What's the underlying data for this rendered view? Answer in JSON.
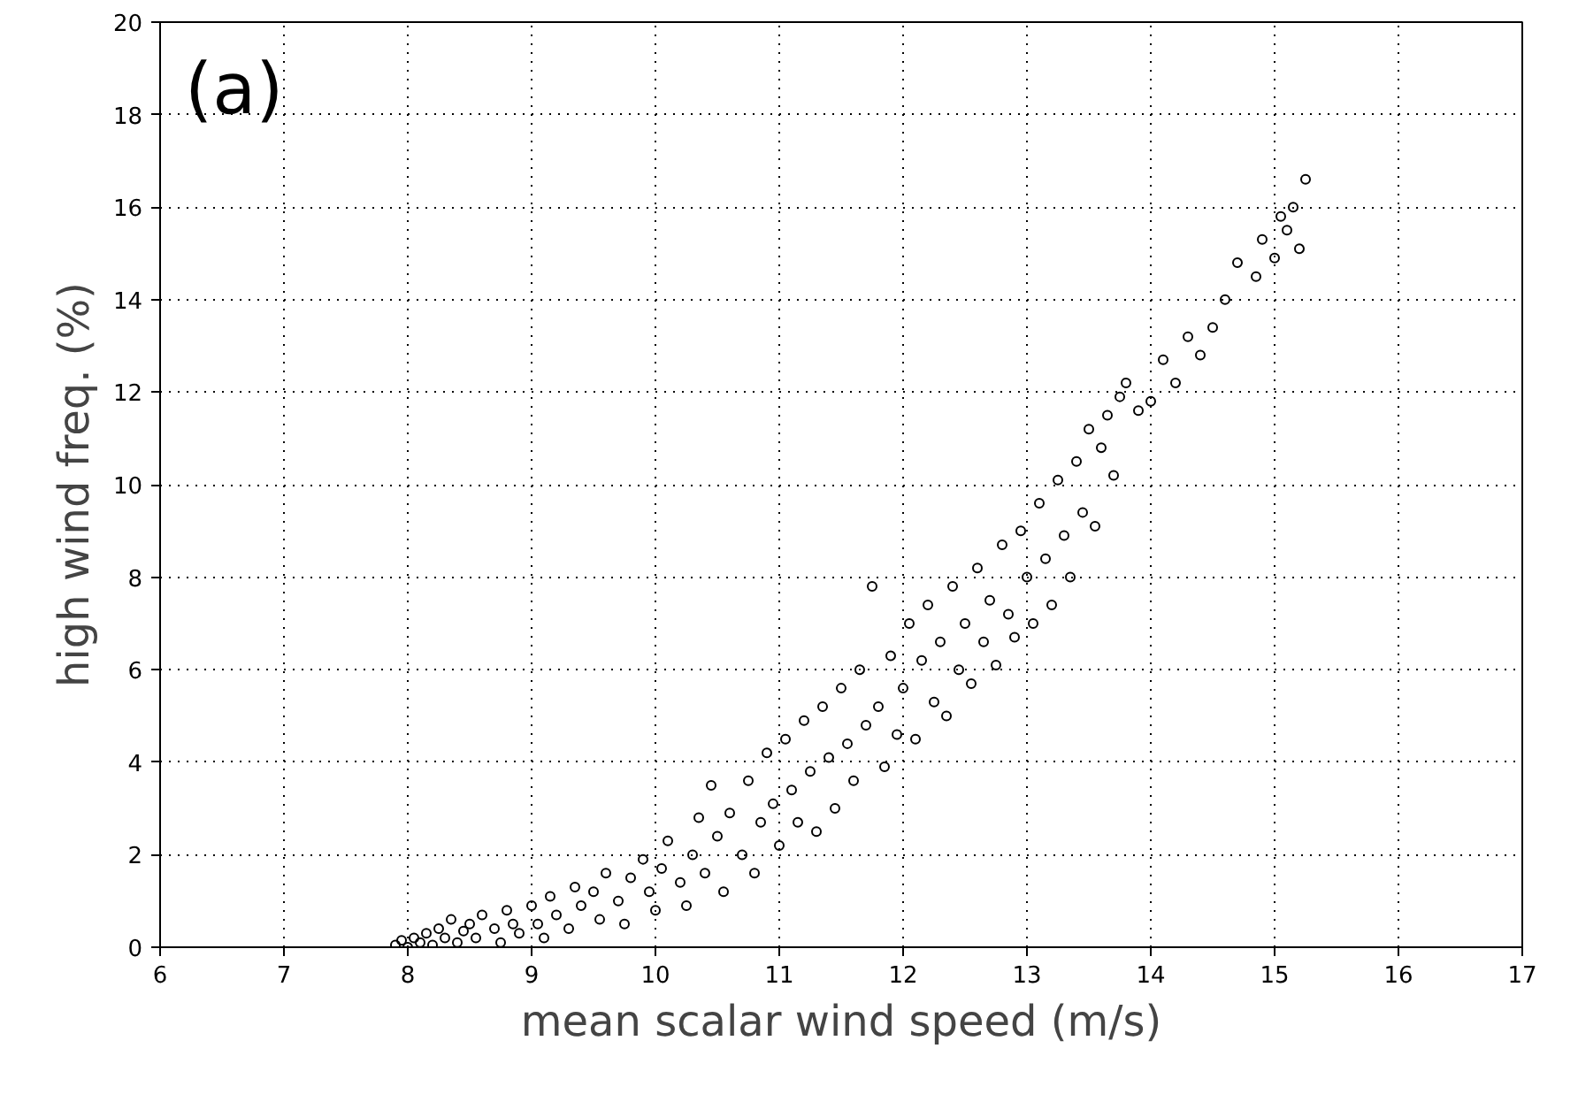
{
  "chart_data": {
    "type": "scatter",
    "xlabel": "mean scalar wind speed (m/s)",
    "ylabel": "high wind freq. (%)",
    "annotations": [
      "(a)"
    ],
    "xlim": [
      6,
      17
    ],
    "ylim": [
      0,
      20
    ],
    "xticks": [
      6,
      7,
      8,
      9,
      10,
      11,
      12,
      13,
      14,
      15,
      16,
      17
    ],
    "yticks": [
      0,
      2,
      4,
      6,
      8,
      10,
      12,
      14,
      16,
      18,
      20
    ],
    "grid": true,
    "marker": "circle",
    "x": [
      7.9,
      7.95,
      8.0,
      8.05,
      8.1,
      8.15,
      8.2,
      8.25,
      8.3,
      8.35,
      8.4,
      8.45,
      8.5,
      8.55,
      8.6,
      8.7,
      8.75,
      8.8,
      8.85,
      8.9,
      9.0,
      9.05,
      9.1,
      9.15,
      9.2,
      9.3,
      9.35,
      9.4,
      9.5,
      9.55,
      9.6,
      9.7,
      9.75,
      9.8,
      9.9,
      9.95,
      10.0,
      10.05,
      10.1,
      10.2,
      10.25,
      10.3,
      10.35,
      10.4,
      10.45,
      10.5,
      10.55,
      10.6,
      10.7,
      10.75,
      10.8,
      10.85,
      10.9,
      10.95,
      11.0,
      11.05,
      11.1,
      11.15,
      11.2,
      11.25,
      11.3,
      11.35,
      11.4,
      11.45,
      11.5,
      11.55,
      11.6,
      11.65,
      11.7,
      11.75,
      11.8,
      11.85,
      11.9,
      11.95,
      12.0,
      12.05,
      12.1,
      12.15,
      12.2,
      12.25,
      12.3,
      12.35,
      12.4,
      12.45,
      12.5,
      12.55,
      12.6,
      12.65,
      12.7,
      12.75,
      12.8,
      12.85,
      12.9,
      12.95,
      13.0,
      13.05,
      13.1,
      13.15,
      13.2,
      13.25,
      13.3,
      13.35,
      13.4,
      13.45,
      13.5,
      13.55,
      13.6,
      13.65,
      13.7,
      13.75,
      13.8,
      13.9,
      14.0,
      14.1,
      14.2,
      14.3,
      14.4,
      14.5,
      14.6,
      14.7,
      14.85,
      14.9,
      15.0,
      15.05,
      15.1,
      15.15,
      15.2,
      15.25
    ],
    "series": [
      {
        "color": "#000000",
        "values": [
          0.05,
          0.15,
          0.0,
          0.2,
          0.1,
          0.3,
          0.05,
          0.4,
          0.2,
          0.6,
          0.1,
          0.35,
          0.5,
          0.2,
          0.7,
          0.4,
          0.1,
          0.8,
          0.5,
          0.3,
          0.9,
          0.5,
          0.2,
          1.1,
          0.7,
          0.4,
          1.3,
          0.9,
          1.2,
          0.6,
          1.6,
          1.0,
          0.5,
          1.5,
          1.9,
          1.2,
          0.8,
          1.7,
          2.3,
          1.4,
          0.9,
          2.0,
          2.8,
          1.6,
          3.5,
          2.4,
          1.2,
          2.9,
          2.0,
          3.6,
          1.6,
          2.7,
          4.2,
          3.1,
          2.2,
          4.5,
          3.4,
          2.7,
          4.9,
          3.8,
          2.5,
          5.2,
          4.1,
          3.0,
          5.6,
          4.4,
          3.6,
          6.0,
          4.8,
          7.8,
          5.2,
          3.9,
          6.3,
          4.6,
          5.6,
          7.0,
          4.5,
          6.2,
          7.4,
          5.3,
          6.6,
          5.0,
          7.8,
          6.0,
          7.0,
          5.7,
          8.2,
          6.6,
          7.5,
          6.1,
          8.7,
          7.2,
          6.7,
          9.0,
          8.0,
          7.0,
          9.6,
          8.4,
          7.4,
          10.1,
          8.9,
          8.0,
          10.5,
          9.4,
          11.2,
          9.1,
          10.8,
          11.5,
          10.2,
          11.9,
          12.2,
          11.6,
          11.8,
          12.7,
          12.2,
          13.2,
          12.8,
          13.4,
          14.0,
          14.8,
          14.5,
          15.3,
          14.9,
          15.8,
          15.5,
          16.0,
          15.1,
          16.6
        ]
      }
    ]
  }
}
